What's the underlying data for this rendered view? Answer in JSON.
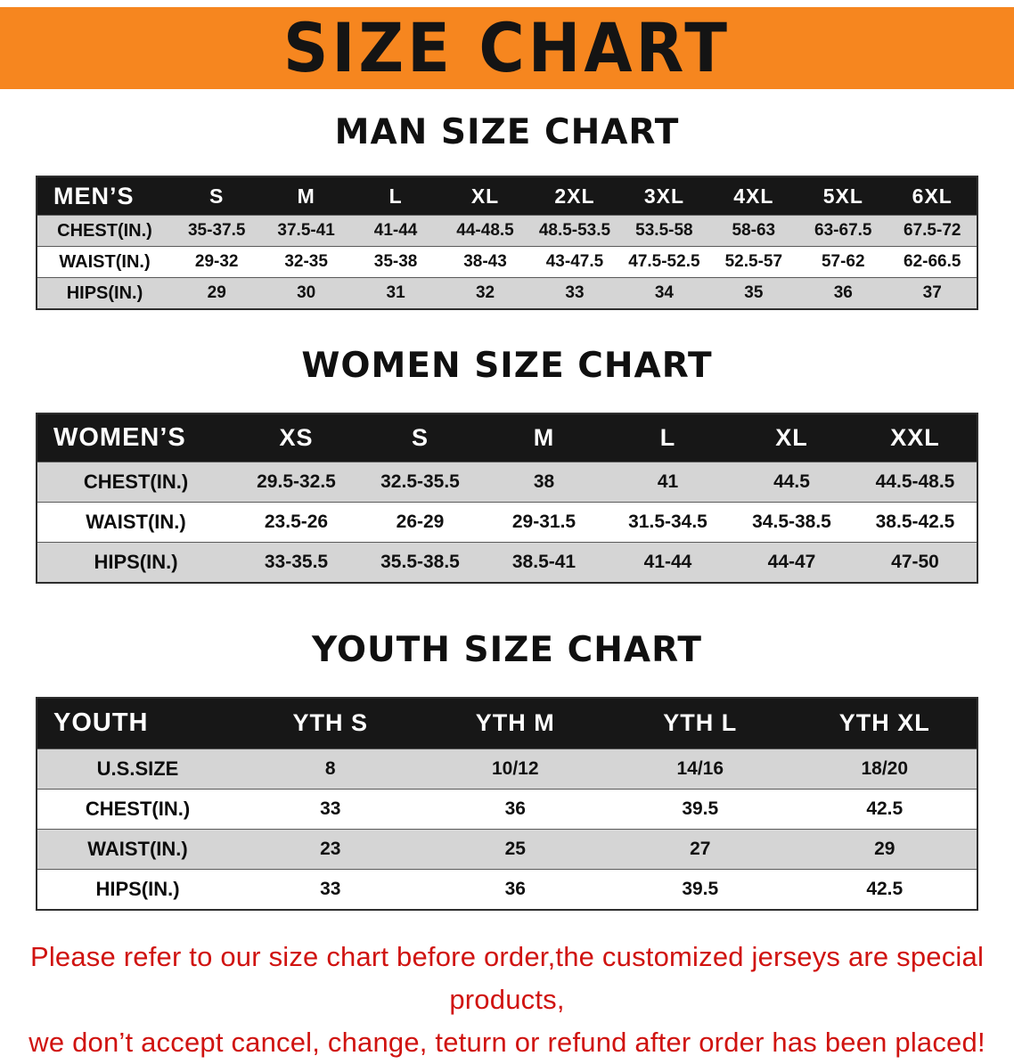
{
  "colors": {
    "banner_bg": "#f6861f",
    "header_bg": "#171717",
    "header_text": "#ffffff",
    "row_shade": "#d5d5d5",
    "notice_text": "#d01310"
  },
  "banner": {
    "title": "SIZE CHART"
  },
  "sections": [
    {
      "id": "men",
      "heading": "MAN SIZE CHART",
      "table": {
        "header": [
          "MEN’S",
          "S",
          "M",
          "L",
          "XL",
          "2XL",
          "3XL",
          "4XL",
          "5XL",
          "6XL"
        ],
        "rows": [
          {
            "label": "CHEST(IN.)",
            "values": [
              "35-37.5",
              "37.5-41",
              "41-44",
              "44-48.5",
              "48.5-53.5",
              "53.5-58",
              "58-63",
              "63-67.5",
              "67.5-72"
            ]
          },
          {
            "label": "WAIST(IN.)",
            "values": [
              "29-32",
              "32-35",
              "35-38",
              "38-43",
              "43-47.5",
              "47.5-52.5",
              "52.5-57",
              "57-62",
              "62-66.5"
            ]
          },
          {
            "label": "HIPS(IN.)",
            "values": [
              "29",
              "30",
              "31",
              "32",
              "33",
              "34",
              "35",
              "36",
              "37"
            ]
          }
        ]
      }
    },
    {
      "id": "women",
      "heading": "WOMEN SIZE CHART",
      "table": {
        "header": [
          "WOMEN’S",
          "XS",
          "S",
          "M",
          "L",
          "XL",
          "XXL"
        ],
        "rows": [
          {
            "label": "CHEST(IN.)",
            "values": [
              "29.5-32.5",
              "32.5-35.5",
              "38",
              "41",
              "44.5",
              "44.5-48.5"
            ]
          },
          {
            "label": "WAIST(IN.)",
            "values": [
              "23.5-26",
              "26-29",
              "29-31.5",
              "31.5-34.5",
              "34.5-38.5",
              "38.5-42.5"
            ]
          },
          {
            "label": "HIPS(IN.)",
            "values": [
              "33-35.5",
              "35.5-38.5",
              "38.5-41",
              "41-44",
              "44-47",
              "47-50"
            ]
          }
        ]
      }
    },
    {
      "id": "youth",
      "heading": "YOUTH SIZE CHART",
      "table": {
        "header": [
          "YOUTH",
          "YTH S",
          "YTH M",
          "YTH L",
          "YTH XL"
        ],
        "rows": [
          {
            "label": "U.S.SIZE",
            "values": [
              "8",
              "10/12",
              "14/16",
              "18/20"
            ]
          },
          {
            "label": "CHEST(IN.)",
            "values": [
              "33",
              "36",
              "39.5",
              "42.5"
            ]
          },
          {
            "label": "WAIST(IN.)",
            "values": [
              "23",
              "25",
              "27",
              "29"
            ]
          },
          {
            "label": "HIPS(IN.)",
            "values": [
              "33",
              "36",
              "39.5",
              "42.5"
            ]
          }
        ]
      }
    }
  ],
  "notice": {
    "line1": "Please refer to our size chart before order,the customized jerseys are special products,",
    "line2": "we don’t accept cancel, change, teturn or refund after order has been placed!"
  }
}
